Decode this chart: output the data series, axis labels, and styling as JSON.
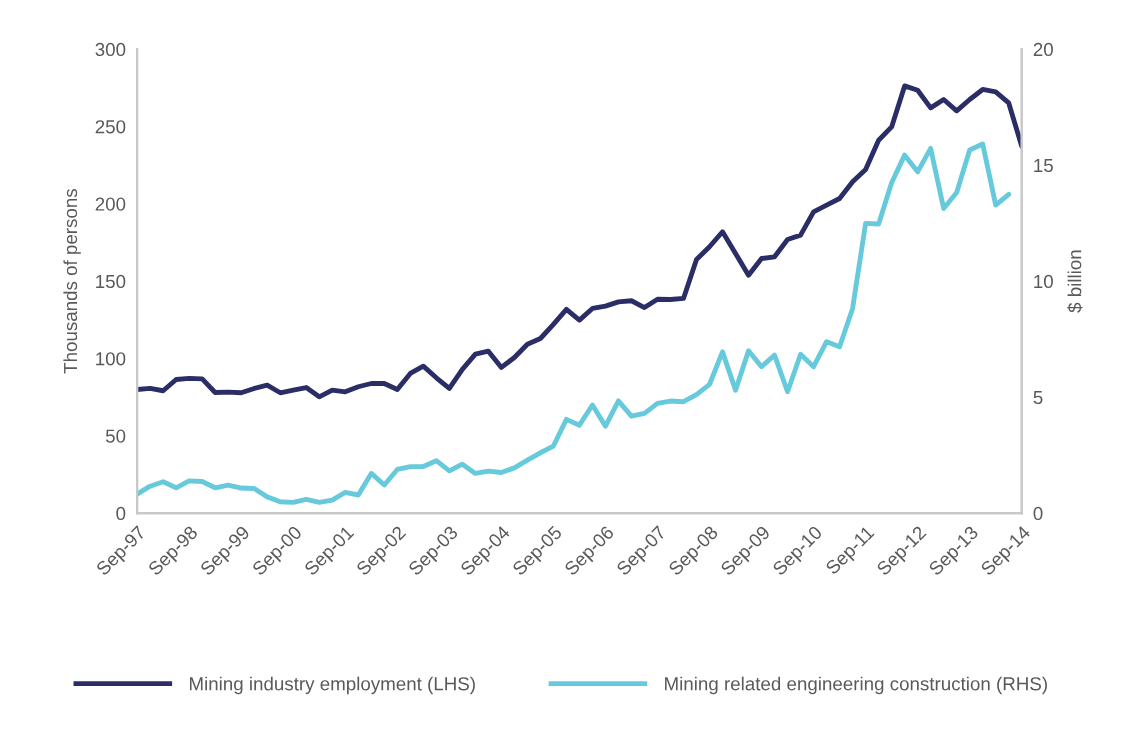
{
  "chart_data": {
    "type": "line",
    "ylabel": "Thousands of persons",
    "y2label": "$ billion",
    "categories": [
      "Sep-97",
      null,
      null,
      null,
      "Sep-98",
      null,
      null,
      null,
      "Sep-99",
      null,
      null,
      null,
      "Sep-00",
      null,
      null,
      null,
      "Sep-01",
      null,
      null,
      null,
      "Sep-02",
      null,
      null,
      null,
      "Sep-03",
      null,
      null,
      null,
      "Sep-04",
      null,
      null,
      null,
      "Sep-05",
      null,
      null,
      null,
      "Sep-06",
      null,
      null,
      null,
      "Sep-07",
      null,
      null,
      null,
      "Sep-08",
      null,
      null,
      null,
      "Sep-09",
      null,
      null,
      null,
      "Sep-10",
      null,
      null,
      null,
      "Sep-11",
      null,
      null,
      null,
      "Sep-12",
      null,
      null,
      null,
      "Sep-13",
      null,
      null,
      null,
      "Sep-14"
    ],
    "series": [
      {
        "name": "Mining industry employment (LHS)",
        "color": "#2b2d66",
        "values": [
          79.9,
          80.6,
          79.1,
          86.4,
          87.1,
          86.8,
          78.0,
          78.2,
          77.8,
          80.6,
          82.7,
          77.8,
          79.5,
          81.2,
          75.2,
          79.5,
          78.4,
          81.7,
          83.8,
          83.8,
          79.9,
          90.3,
          95.0,
          87.5,
          80.6,
          92.9,
          102.8,
          104.7,
          94.2,
          100.6,
          109.2,
          112.9,
          122.0,
          131.7,
          124.8,
          132.3,
          133.8,
          136.6,
          137.3,
          132.9,
          138.3,
          138.1,
          138.8,
          164.0,
          172.2,
          181.9,
          167.9,
          153.8,
          164.6,
          165.7,
          176.9,
          179.7,
          194.8,
          199.1,
          203.4,
          214.2,
          222.2,
          241.1,
          249.7,
          276.2,
          273.4,
          262.0,
          267.4,
          260.1,
          267.4,
          273.9,
          272.4,
          265.2,
          237.2
        ]
      },
      {
        "name": "Mining related engineering construction (RHS)",
        "color": "#66c9dc",
        "axis": "y2",
        "values": [
          0.82,
          1.16,
          1.35,
          1.09,
          1.39,
          1.36,
          1.09,
          1.21,
          1.08,
          1.06,
          0.7,
          0.49,
          0.46,
          0.59,
          0.46,
          0.56,
          0.89,
          0.78,
          1.71,
          1.21,
          1.88,
          2.0,
          2.01,
          2.26,
          1.82,
          2.11,
          1.71,
          1.81,
          1.75,
          1.95,
          2.28,
          2.6,
          2.89,
          4.04,
          3.79,
          4.66,
          3.75,
          4.84,
          4.18,
          4.3,
          4.73,
          4.83,
          4.8,
          5.11,
          5.55,
          6.95,
          5.3,
          7.0,
          6.31,
          6.81,
          5.23,
          6.85,
          6.31,
          7.39,
          7.17,
          8.82,
          12.49,
          12.46,
          14.24,
          15.43,
          14.71,
          15.72,
          13.13,
          13.82,
          15.65,
          15.91,
          13.28,
          13.74,
          null
        ]
      }
    ],
    "ylim": [
      0,
      300
    ],
    "yticks": [
      0,
      50,
      100,
      150,
      200,
      250,
      300
    ],
    "y2lim": [
      0,
      20
    ],
    "y2ticks": [
      0,
      5,
      10,
      15,
      20
    ],
    "grid": false,
    "legend": "bottom",
    "marker": "none",
    "line_style": "solid"
  }
}
